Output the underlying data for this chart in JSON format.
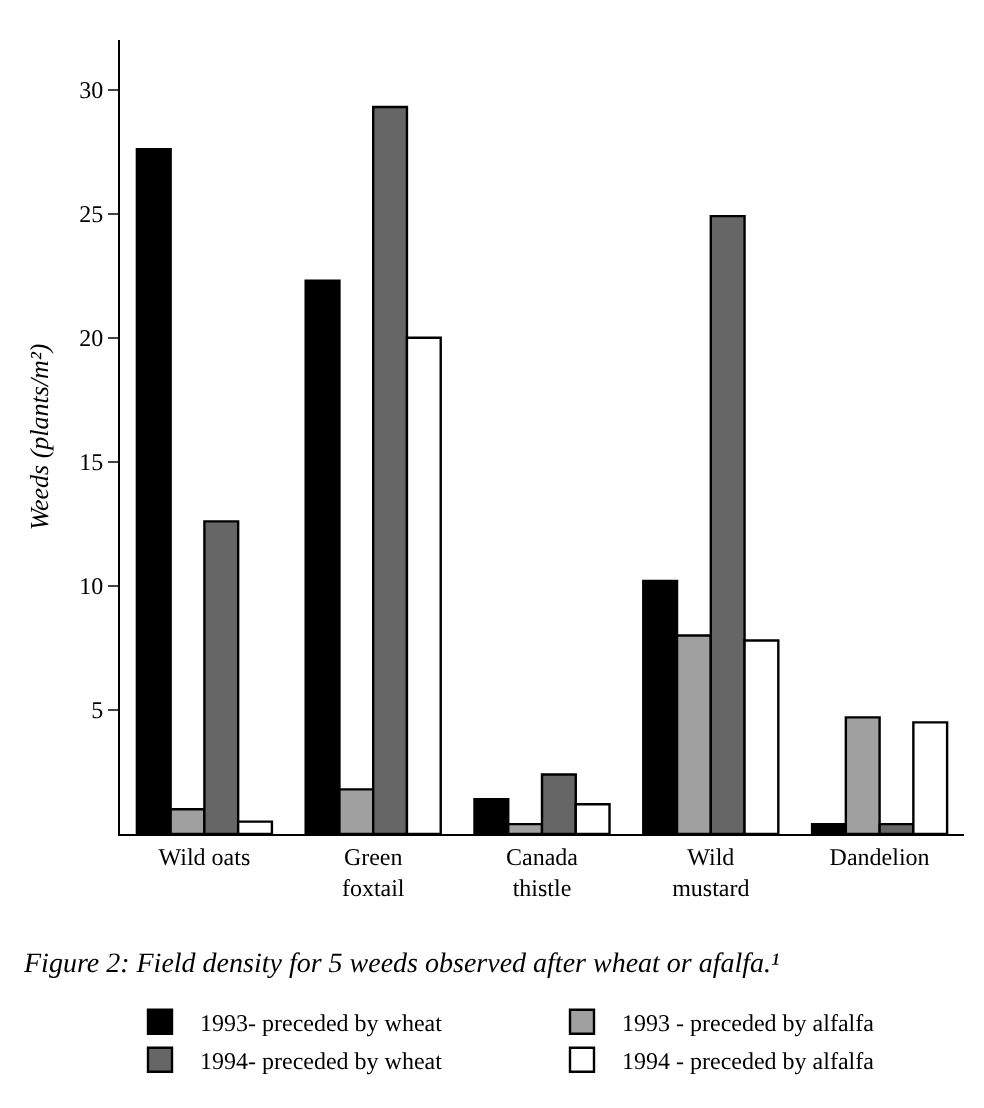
{
  "chart_data": {
    "type": "bar",
    "title": "Figure 2: Field density for 5 weeds observed after wheat or afalfa.¹",
    "ylabel": "Weeds (plants/m²)",
    "categories": [
      "Wild oats",
      "Green foxtail",
      "Canada thistle",
      "Wild mustard",
      "Dandelion"
    ],
    "series": [
      {
        "name": "1993- preceded by wheat",
        "color": "#000000",
        "values": [
          27.6,
          22.3,
          1.4,
          10.2,
          0.4
        ]
      },
      {
        "name": "1993 - preceded by alfalfa",
        "color": "#a0a0a0",
        "values": [
          1.0,
          1.8,
          0.4,
          8.0,
          4.7
        ]
      },
      {
        "name": "1994- preceded by wheat",
        "color": "#666666",
        "values": [
          12.6,
          29.3,
          2.4,
          24.9,
          0.4
        ]
      },
      {
        "name": "1994 - preceded by alfalfa",
        "color": "#ffffff",
        "values": [
          0.5,
          20.0,
          1.2,
          7.8,
          4.5
        ]
      }
    ],
    "ylim": [
      0,
      32
    ],
    "yticks": [
      5,
      10,
      15,
      20,
      25,
      30
    ],
    "grid": false,
    "legend": "bottom"
  }
}
